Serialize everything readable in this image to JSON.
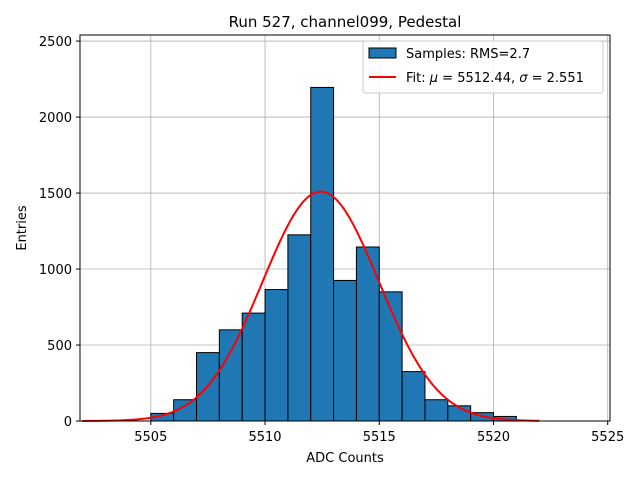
{
  "chart_data": {
    "type": "bar",
    "title": "Run 527, channel099, Pedestal",
    "xlabel": "ADC Counts",
    "ylabel": "Entries",
    "xlim": [
      5501.9,
      5525.1
    ],
    "ylim": [
      0,
      2540
    ],
    "xticks": [
      5505,
      5510,
      5515,
      5520,
      5525
    ],
    "yticks": [
      0,
      500,
      1000,
      1500,
      2000,
      2500
    ],
    "grid": true,
    "legend_position": "top-right",
    "colors": {
      "bars": "#1f77b4",
      "bar_edge": "#000000",
      "fit": "#ff0000",
      "grid": "#b0b0b0"
    },
    "histogram": {
      "name": "Samples: RMS=2.7",
      "bin_width": 1,
      "bins": [
        {
          "x0": 5505,
          "value": 50
        },
        {
          "x0": 5506,
          "value": 140
        },
        {
          "x0": 5507,
          "value": 450
        },
        {
          "x0": 5508,
          "value": 600
        },
        {
          "x0": 5509,
          "value": 710
        },
        {
          "x0": 5510,
          "value": 865
        },
        {
          "x0": 5511,
          "value": 1225
        },
        {
          "x0": 5512,
          "value": 2195
        },
        {
          "x0": 5513,
          "value": 925
        },
        {
          "x0": 5514,
          "value": 1145
        },
        {
          "x0": 5515,
          "value": 850
        },
        {
          "x0": 5516,
          "value": 325
        },
        {
          "x0": 5517,
          "value": 140
        },
        {
          "x0": 5518,
          "value": 100
        },
        {
          "x0": 5519,
          "value": 55
        },
        {
          "x0": 5520,
          "value": 30
        }
      ]
    },
    "fit": {
      "name": "Fit: μ = 5512.44, σ = 2.551",
      "mu": 5512.44,
      "sigma": 2.551,
      "amplitude": 1510,
      "x_range": [
        5502,
        5522
      ]
    }
  }
}
